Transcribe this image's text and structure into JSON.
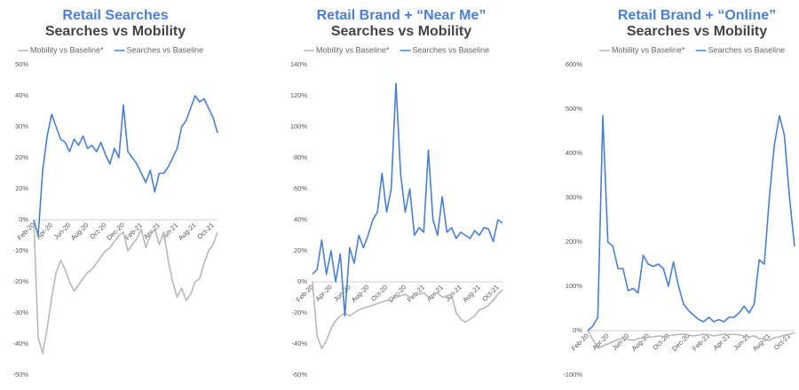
{
  "chart_data": [
    {
      "type": "line",
      "title": "Retail Searches",
      "subtitle": "Searches vs Mobility",
      "categories": [
        "Feb-20",
        null,
        null,
        null,
        "Apr-20",
        null,
        null,
        null,
        "Jun-20",
        null,
        null,
        null,
        "Aug-20",
        null,
        null,
        null,
        "Oct-20",
        null,
        null,
        null,
        "Dec-20",
        null,
        null,
        null,
        "Feb-21",
        null,
        null,
        null,
        "Apr-21",
        null,
        null,
        null,
        "Jun-21",
        null,
        null,
        null,
        "Aug-21",
        null,
        null,
        null,
        "Oct-21",
        null
      ],
      "series": [
        {
          "name": "Mobility vs Baseline*",
          "color": "#b8b8b8",
          "values": [
            0,
            -38,
            -43,
            -35,
            -25,
            -17,
            -13,
            -16,
            -20,
            -23,
            -21,
            -19,
            -17,
            -16,
            -14,
            -12,
            -10,
            -9,
            -7,
            -5,
            -4,
            -10,
            -8,
            -6,
            -3,
            -9,
            -5,
            -3,
            -8,
            -4,
            -13,
            -20,
            -25,
            -22,
            -26,
            -24,
            -20,
            -19,
            -14,
            -10,
            -8,
            -4
          ]
        },
        {
          "name": "Searches vs Baseline",
          "color": "#4a7fd4",
          "values": [
            0,
            -5,
            16,
            27,
            34,
            30,
            26,
            25,
            22,
            26,
            24,
            27,
            23,
            24,
            22,
            25,
            21,
            18,
            23,
            20,
            37,
            22,
            20,
            18,
            15,
            12,
            16,
            9,
            15,
            15,
            17,
            20,
            23,
            30,
            32,
            36,
            40,
            38,
            39,
            36,
            33,
            28
          ]
        }
      ],
      "ylim": [
        -50,
        50
      ],
      "yticks": [
        {
          "value": -50,
          "label": "-50%"
        },
        {
          "value": -40,
          "label": "-40%"
        },
        {
          "value": -30,
          "label": "-30%"
        },
        {
          "value": -20,
          "label": "-20%"
        },
        {
          "value": -10,
          "label": "-10%"
        },
        {
          "value": 0,
          "label": "0%"
        },
        {
          "value": 10,
          "label": "10%"
        },
        {
          "value": 20,
          "label": "20%"
        },
        {
          "value": 30,
          "label": "30%"
        },
        {
          "value": 40,
          "label": "40%"
        },
        {
          "value": 50,
          "label": "50%"
        }
      ]
    },
    {
      "type": "line",
      "title": "Retail Brand + “Near Me”",
      "subtitle": "Searches vs Mobility",
      "categories": [
        "Feb-20",
        null,
        null,
        null,
        "Apr-20",
        null,
        null,
        null,
        "Jun-20",
        null,
        null,
        null,
        "Aug-20",
        null,
        null,
        null,
        "Oct-20",
        null,
        null,
        null,
        "Dec-20",
        null,
        null,
        null,
        "Feb-21",
        null,
        null,
        null,
        "Apr-21",
        null,
        null,
        null,
        "Jun-21",
        null,
        null,
        null,
        "Aug-21",
        null,
        null,
        null,
        "Oct-21",
        null
      ],
      "series": [
        {
          "name": "Mobility vs Baseline*",
          "color": "#b8b8b8",
          "values": [
            0,
            -35,
            -43,
            -38,
            -30,
            -25,
            -22,
            -20,
            -22,
            -20,
            -18,
            -17,
            -16,
            -15,
            -14,
            -13,
            -12,
            -12,
            -10,
            -9,
            -8,
            -10,
            -9,
            -8,
            -7,
            -10,
            -8,
            -7,
            -10,
            -9,
            -8,
            -20,
            -24,
            -26,
            -24,
            -22,
            -18,
            -17,
            -15,
            -12,
            -8,
            -5
          ]
        },
        {
          "name": "Searches vs Baseline",
          "color": "#4a7fd4",
          "values": [
            5,
            8,
            27,
            5,
            20,
            0,
            18,
            -22,
            22,
            12,
            30,
            22,
            30,
            40,
            45,
            70,
            45,
            60,
            128,
            70,
            45,
            60,
            30,
            35,
            32,
            85,
            40,
            30,
            55,
            32,
            35,
            28,
            32,
            30,
            28,
            33,
            30,
            35,
            34,
            26,
            40,
            38
          ]
        }
      ],
      "ylim": [
        -60,
        140
      ],
      "yticks": [
        {
          "value": -60,
          "label": "-60%"
        },
        {
          "value": -40,
          "label": "-40%"
        },
        {
          "value": -20,
          "label": "-20%"
        },
        {
          "value": 0,
          "label": "0%"
        },
        {
          "value": 20,
          "label": "20%"
        },
        {
          "value": 40,
          "label": "40%"
        },
        {
          "value": 60,
          "label": "60%"
        },
        {
          "value": 80,
          "label": "80%"
        },
        {
          "value": 100,
          "label": "100%"
        },
        {
          "value": 120,
          "label": "120%"
        },
        {
          "value": 140,
          "label": "140%"
        }
      ]
    },
    {
      "type": "line",
      "title": "Retail Brand + “Online”",
      "subtitle": "Searches vs Mobility",
      "categories": [
        "Feb-20",
        null,
        null,
        null,
        "Apr-20",
        null,
        null,
        null,
        "Jun-20",
        null,
        null,
        null,
        "Aug-20",
        null,
        null,
        null,
        "Oct-20",
        null,
        null,
        null,
        "Dec-20",
        null,
        null,
        null,
        "Feb-21",
        null,
        null,
        null,
        "Apr-21",
        null,
        null,
        null,
        "Jun-21",
        null,
        null,
        null,
        "Aug-21",
        null,
        null,
        null,
        "Oct-21",
        null
      ],
      "series": [
        {
          "name": "Mobility vs Baseline*",
          "color": "#b8b8b8",
          "values": [
            0,
            -20,
            -40,
            -35,
            -30,
            -25,
            -20,
            -18,
            -20,
            -22,
            -18,
            -17,
            -15,
            -14,
            -12,
            -13,
            -12,
            -10,
            -9,
            -8,
            -10,
            -12,
            -10,
            -8,
            -9,
            -12,
            -10,
            -8,
            -9,
            -8,
            -10,
            -12,
            -14,
            -12,
            -18,
            -20,
            -22,
            -16,
            -14,
            -10,
            -8,
            -5
          ]
        },
        {
          "name": "Searches vs Baseline",
          "color": "#4a7fd4",
          "values": [
            0,
            10,
            30,
            485,
            200,
            190,
            140,
            140,
            90,
            95,
            85,
            170,
            150,
            145,
            150,
            140,
            100,
            155,
            100,
            60,
            45,
            35,
            25,
            20,
            30,
            20,
            25,
            20,
            30,
            30,
            40,
            55,
            40,
            60,
            160,
            150,
            300,
            420,
            485,
            440,
            300,
            190
          ]
        }
      ],
      "ylim": [
        -100,
        600
      ],
      "yticks": [
        {
          "value": -100,
          "label": "-100%"
        },
        {
          "value": 0,
          "label": "0%"
        },
        {
          "value": 100,
          "label": "100%"
        },
        {
          "value": 200,
          "label": "200%"
        },
        {
          "value": 300,
          "label": "300%"
        },
        {
          "value": 400,
          "label": "400%"
        },
        {
          "value": 500,
          "label": "500%"
        },
        {
          "value": 600,
          "label": "600%"
        }
      ]
    }
  ]
}
